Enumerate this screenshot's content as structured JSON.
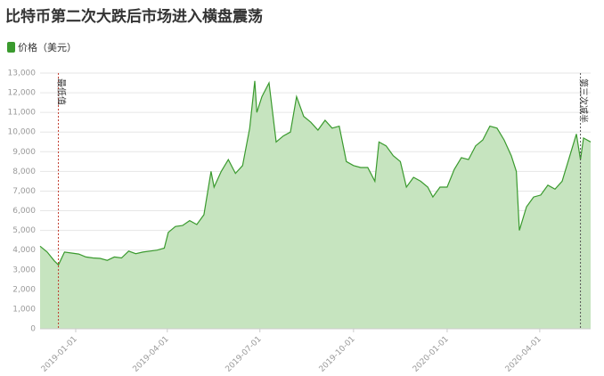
{
  "chart_data": {
    "type": "area",
    "title": "比特币第二次大跌后市场进入横盘震荡",
    "x": [
      "2018-11-27",
      "2018-12-04",
      "2018-12-11",
      "2018-12-15",
      "2018-12-21",
      "2018-12-28",
      "2019-01-04",
      "2019-01-11",
      "2019-01-18",
      "2019-01-25",
      "2019-02-01",
      "2019-02-08",
      "2019-02-15",
      "2019-02-22",
      "2019-03-01",
      "2019-03-08",
      "2019-03-15",
      "2019-03-22",
      "2019-03-29",
      "2019-04-02",
      "2019-04-09",
      "2019-04-16",
      "2019-04-23",
      "2019-04-30",
      "2019-05-07",
      "2019-05-14",
      "2019-05-17",
      "2019-05-24",
      "2019-05-31",
      "2019-06-07",
      "2019-06-14",
      "2019-06-21",
      "2019-06-26",
      "2019-06-28",
      "2019-07-03",
      "2019-07-10",
      "2019-07-17",
      "2019-07-24",
      "2019-07-31",
      "2019-08-06",
      "2019-08-13",
      "2019-08-20",
      "2019-08-27",
      "2019-09-03",
      "2019-09-10",
      "2019-09-17",
      "2019-09-24",
      "2019-10-01",
      "2019-10-08",
      "2019-10-15",
      "2019-10-22",
      "2019-10-26",
      "2019-11-02",
      "2019-11-09",
      "2019-11-16",
      "2019-11-22",
      "2019-11-29",
      "2019-12-06",
      "2019-12-13",
      "2019-12-18",
      "2019-12-25",
      "2020-01-01",
      "2020-01-08",
      "2020-01-15",
      "2020-01-22",
      "2020-01-29",
      "2020-02-05",
      "2020-02-12",
      "2020-02-19",
      "2020-02-26",
      "2020-03-04",
      "2020-03-09",
      "2020-03-12",
      "2020-03-19",
      "2020-03-26",
      "2020-04-02",
      "2020-04-09",
      "2020-04-16",
      "2020-04-23",
      "2020-04-30",
      "2020-05-07",
      "2020-05-11",
      "2020-05-14",
      "2020-05-21"
    ],
    "series": [
      {
        "name": "价格（美元）",
        "color": "#3a9a2e",
        "fill": "#c6e4bf",
        "values": [
          4200,
          3900,
          3450,
          3250,
          3900,
          3850,
          3800,
          3650,
          3600,
          3580,
          3480,
          3650,
          3600,
          3950,
          3820,
          3900,
          3950,
          4000,
          4100,
          4900,
          5200,
          5250,
          5500,
          5300,
          5800,
          8000,
          7200,
          8000,
          8600,
          7900,
          8300,
          10200,
          12600,
          11000,
          11800,
          12500,
          9500,
          9800,
          10000,
          11800,
          10800,
          10500,
          10100,
          10600,
          10200,
          10300,
          8500,
          8300,
          8200,
          8200,
          7500,
          9500,
          9300,
          8800,
          8500,
          7200,
          7700,
          7500,
          7200,
          6700,
          7200,
          7200,
          8100,
          8700,
          8600,
          9300,
          9600,
          10300,
          10200,
          9600,
          8800,
          8000,
          5000,
          6200,
          6700,
          6800,
          7300,
          7100,
          7500,
          8700,
          9900,
          8600,
          9700,
          9500
        ]
      }
    ],
    "xlim": [
      "2018-11-27",
      "2020-05-21"
    ],
    "xticks": [
      "2019-01-01",
      "2019-04-01",
      "2019-07-01",
      "2019-10-01",
      "2020-01-01",
      "2020-04-01"
    ],
    "ylim": [
      0,
      13000
    ],
    "yticks": [
      0,
      {
        "value": 1000,
        "label": "1,000"
      },
      {
        "value": 2000,
        "label": "2,000"
      },
      {
        "value": 3000,
        "label": "3,000"
      },
      {
        "value": 4000,
        "label": "4,000"
      },
      {
        "value": 5000,
        "label": "5,000"
      },
      {
        "value": 6000,
        "label": "6,000"
      },
      {
        "value": 7000,
        "label": "7,000"
      },
      {
        "value": 8000,
        "label": "8,000"
      },
      {
        "value": 9000,
        "label": "9,000"
      },
      {
        "value": 10000,
        "label": "10,000"
      },
      {
        "value": 11000,
        "label": "11,000"
      },
      {
        "value": 12000,
        "label": "12,000"
      },
      {
        "value": 13000,
        "label": "13,000"
      }
    ],
    "grid": true,
    "annotations": [
      {
        "x": "2018-12-15",
        "label": "最低值",
        "color": "#c0392b"
      },
      {
        "x": "2020-05-11",
        "label": "第三次减半",
        "color": "#555"
      }
    ]
  }
}
